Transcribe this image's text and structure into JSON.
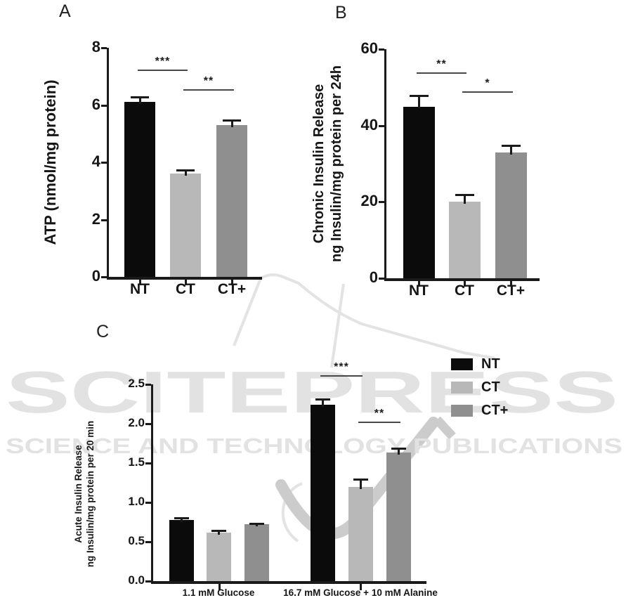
{
  "watermark": {
    "title": "SCITEPRESS",
    "subtitle": "SCIENCE AND TECHNOLOGY PUBLICATIONS"
  },
  "colors": {
    "NT": "#0b0b0b",
    "CT": "#b8b8b8",
    "CT+": "#8f8f8f"
  },
  "panels": {
    "a": {
      "letter": "A"
    },
    "b": {
      "letter": "B"
    },
    "c": {
      "letter": "C"
    }
  },
  "legend": {
    "entries": [
      {
        "label": "NT"
      },
      {
        "label": "CT"
      },
      {
        "label": "CT+"
      }
    ]
  },
  "chart_data": [
    {
      "type": "bar",
      "panel": "A",
      "ylabel": "ATP (nmol/mg protein)",
      "ylim": [
        0,
        8
      ],
      "yticks": [
        0,
        2,
        4,
        6,
        8
      ],
      "ytick_labels": [
        "0",
        "2",
        "4",
        "6",
        "8"
      ],
      "categories": [
        "NT",
        "CT",
        "CT+"
      ],
      "values": [
        6.1,
        3.6,
        5.3
      ],
      "errors": [
        0.2,
        0.15,
        0.2
      ],
      "significance": [
        {
          "between": [
            0,
            1
          ],
          "stars": "***",
          "y": 7.25
        },
        {
          "between": [
            1,
            2
          ],
          "stars": "**",
          "y": 6.55
        }
      ]
    },
    {
      "type": "bar",
      "panel": "B",
      "ylabel_line1": "Chronic Insulin Release",
      "ylabel_line2": "ng Insulin/mg protein per 24h",
      "ylim": [
        0,
        60
      ],
      "yticks": [
        0,
        20,
        40,
        60
      ],
      "ytick_labels": [
        "0",
        "20",
        "40",
        "60"
      ],
      "categories": [
        "NT",
        "CT",
        "CT+"
      ],
      "values": [
        45,
        20,
        33
      ],
      "errors": [
        3,
        2,
        2
      ],
      "significance": [
        {
          "between": [
            0,
            1
          ],
          "stars": "**",
          "y": 54
        },
        {
          "between": [
            1,
            2
          ],
          "stars": "*",
          "y": 49
        }
      ]
    },
    {
      "type": "bar",
      "panel": "C",
      "ylabel_line1": "Acute Insulin Release",
      "ylabel_line2": "ng Insulin/mg protein per 20 min",
      "ylim": [
        0,
        2.5
      ],
      "yticks": [
        0,
        0.5,
        1,
        1.5,
        2,
        2.5
      ],
      "ytick_labels": [
        "0.0",
        "0.5",
        "1.0",
        "1.5",
        "2.0",
        "2.5"
      ],
      "groups": [
        "1.1 mM Glucose",
        "16.7 mM Glucose + 10 mM Alanine"
      ],
      "series": [
        {
          "name": "NT",
          "values": [
            0.78,
            2.24
          ],
          "errors": [
            0.03,
            0.08
          ]
        },
        {
          "name": "CT",
          "values": [
            0.62,
            1.2
          ],
          "errors": [
            0.03,
            0.1
          ]
        },
        {
          "name": "CT+",
          "values": [
            0.72,
            1.63
          ],
          "errors": [
            0.02,
            0.07
          ]
        }
      ],
      "significance": [
        {
          "between": [
            3,
            4
          ],
          "stars": "***",
          "y": 2.62
        },
        {
          "between": [
            4,
            5
          ],
          "stars": "**",
          "y": 2.03
        }
      ]
    }
  ]
}
